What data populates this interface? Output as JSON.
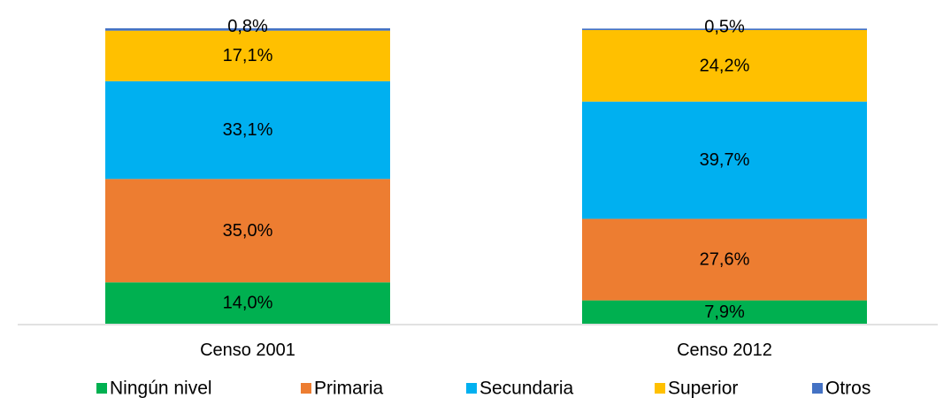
{
  "chart_data": {
    "type": "bar",
    "stacked": true,
    "normalized": true,
    "categories": [
      "Censo 2001",
      "Censo 2012"
    ],
    "series": [
      {
        "name": "Ningún nivel",
        "color": "#00b050",
        "values": [
          14.0,
          7.9
        ],
        "labels": [
          "14,0%",
          "7,9%"
        ]
      },
      {
        "name": "Primaria",
        "color": "#ed7d31",
        "values": [
          35.0,
          27.6
        ],
        "labels": [
          "35,0%",
          "27,6%"
        ]
      },
      {
        "name": "Secundaria",
        "color": "#00b0f0",
        "values": [
          33.1,
          39.7
        ],
        "labels": [
          "33,1%",
          "39,7%"
        ]
      },
      {
        "name": "Superior",
        "color": "#ffc000",
        "values": [
          17.1,
          24.2
        ],
        "labels": [
          "17,1%",
          "24,2%"
        ]
      },
      {
        "name": "Otros",
        "color": "#4472c4",
        "values": [
          0.8,
          0.5
        ],
        "labels": [
          "0,8%",
          "0,5%"
        ]
      }
    ],
    "ylim": [
      0,
      100
    ],
    "grid": false,
    "legend_position": "bottom",
    "title": "",
    "xlabel": "",
    "ylabel": ""
  }
}
